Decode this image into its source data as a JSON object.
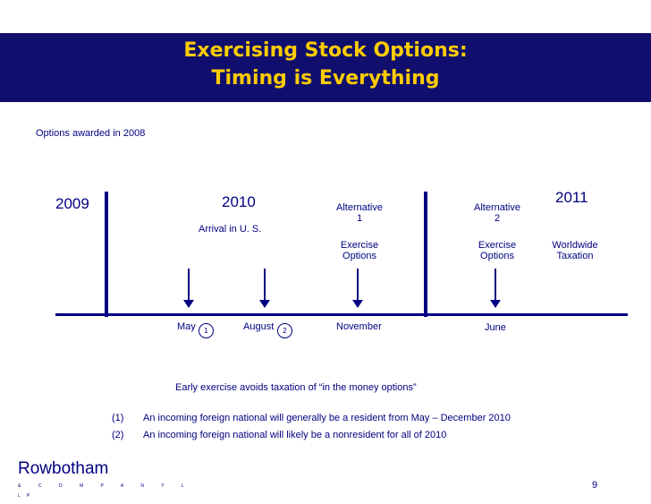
{
  "slide": {
    "title_line1": "Exercising Stock Options:",
    "title_line2": "Timing is Everything",
    "subtitle": "Options awarded  in 2008",
    "page_number": "9"
  },
  "timeline": {
    "year_2009": "2009",
    "year_2010": "2010",
    "year_2011": "2011",
    "arrival": "Arrival in U. S.",
    "alt1_line1": "Alternative",
    "alt1_line2": "1",
    "alt1_exercise_line1": "Exercise",
    "alt1_exercise_line2": "Options",
    "alt2_line1": "Alternative",
    "alt2_line2": "2",
    "alt2_exercise_line1": "Exercise",
    "alt2_exercise_line2": "Options",
    "worldwide_line1": "Worldwide",
    "worldwide_line2": "Taxation",
    "may": "May",
    "may_marker": "1",
    "august": "August",
    "august_marker": "2",
    "november": "November",
    "june": "June"
  },
  "notes": {
    "early_exercise": "Early exercise avoids taxation of “in the money options”",
    "items": [
      {
        "marker": "(1)",
        "text": "An incoming foreign national will generally be a resident from May – December 2010"
      },
      {
        "marker": "(2)",
        "text": "An incoming foreign national will likely be a nonresident for all of 2010"
      }
    ]
  },
  "logo": {
    "name": "Rowbotham",
    "sub1": "&  C  O  M  P  A  N  Y  L",
    "sub2": "L  P"
  },
  "colors": {
    "title_bar": "#100f6e",
    "title_text": "#ffcc00",
    "text": "#000080"
  }
}
